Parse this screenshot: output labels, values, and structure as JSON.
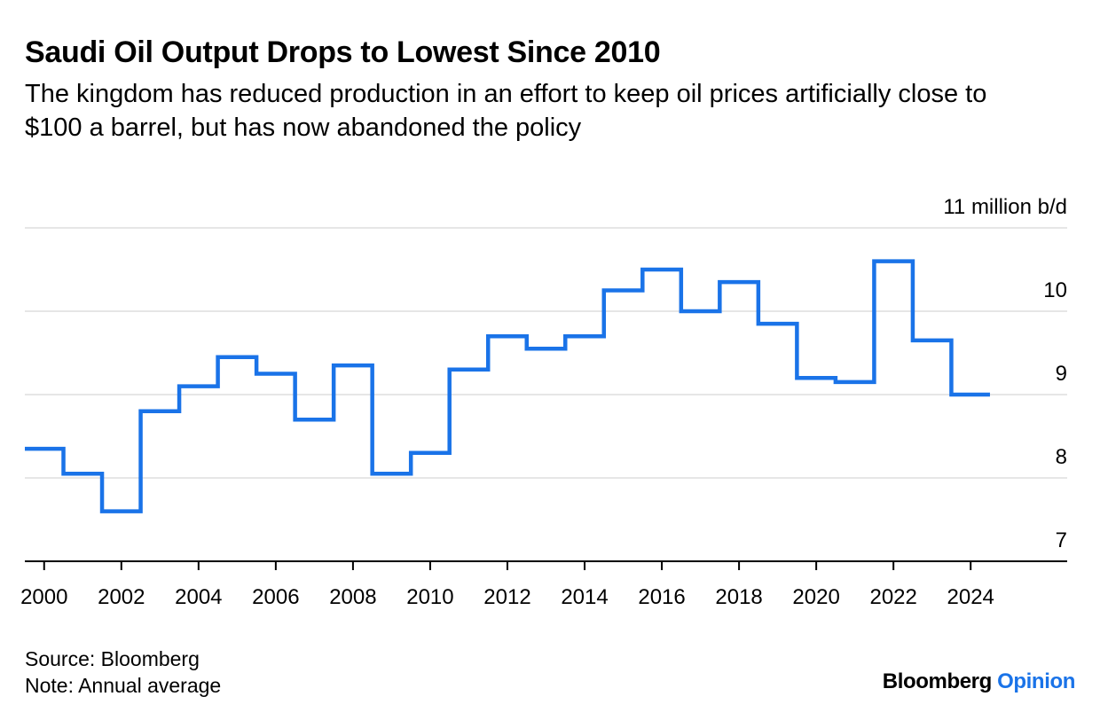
{
  "title": "Saudi Oil Output Drops to Lowest Since 2010",
  "subtitle": "The kingdom has reduced production in an effort to keep oil prices artificially close to $100 a barrel, but has now abandoned the policy",
  "footer": {
    "source": "Source: Bloomberg",
    "note": "Note: Annual average"
  },
  "brand": {
    "name": "Bloomberg",
    "suffix": "Opinion"
  },
  "colors": {
    "line": "#1a73e8",
    "grid": "#e6e6e6",
    "axis": "#000000"
  },
  "chart_data": {
    "type": "line",
    "step": true,
    "title": "Saudi Oil Output Drops to Lowest Since 2010",
    "xlabel": "",
    "ylabel": "",
    "xlim": [
      1999.5,
      2026.5
    ],
    "ylim": [
      7,
      11
    ],
    "y_ticks": [
      7,
      8,
      9,
      10,
      11
    ],
    "y_tick_labels": [
      "7",
      "8",
      "9",
      "10",
      "11 million b/d"
    ],
    "y_axis_position": "right",
    "x_ticks": [
      2000,
      2002,
      2004,
      2006,
      2008,
      2010,
      2012,
      2014,
      2016,
      2018,
      2020,
      2022,
      2024
    ],
    "x_tick_labels": [
      "2000",
      "2002",
      "2004",
      "2006",
      "2008",
      "2010",
      "2012",
      "2014",
      "2016",
      "2018",
      "2020",
      "2022",
      "2024"
    ],
    "grid": true,
    "legend": "none",
    "series": [
      {
        "x": [
          2000,
          2001,
          2002,
          2003,
          2004,
          2005,
          2006,
          2007,
          2008,
          2009,
          2010,
          2011,
          2012,
          2013,
          2014,
          2015,
          2016,
          2017,
          2018,
          2019,
          2020,
          2021,
          2022,
          2023,
          2024
        ],
        "values": [
          8.35,
          8.05,
          7.6,
          8.8,
          9.1,
          9.45,
          9.25,
          8.7,
          9.35,
          8.05,
          8.3,
          9.3,
          9.7,
          9.55,
          9.7,
          10.25,
          10.5,
          10.0,
          10.35,
          9.85,
          9.2,
          9.15,
          10.6,
          9.65,
          9.0
        ]
      }
    ]
  }
}
